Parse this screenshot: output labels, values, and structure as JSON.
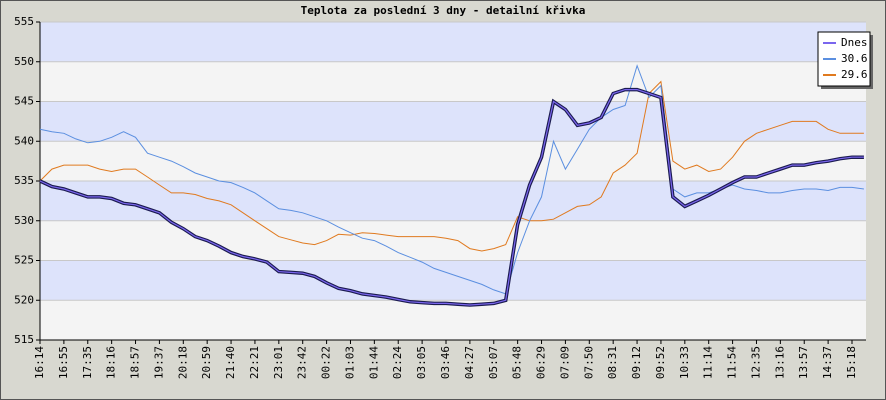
{
  "chart_data": {
    "type": "line",
    "title": "Teplota za poslední 3 dny - detailní křivka",
    "categories": [
      "16:14",
      null,
      "16:55",
      null,
      "17:35",
      null,
      "18:16",
      null,
      "18:57",
      null,
      "19:37",
      null,
      "20:18",
      null,
      "20:59",
      null,
      "21:40",
      null,
      "22:21",
      null,
      "23:01",
      null,
      "23:42",
      null,
      "00:22",
      null,
      "01:03",
      null,
      "01:44",
      null,
      "02:24",
      null,
      "03:05",
      null,
      "03:46",
      null,
      "04:27",
      null,
      "05:07",
      null,
      "05:48",
      null,
      "06:29",
      null,
      "07:09",
      null,
      "07:50",
      null,
      "08:31",
      null,
      "09:12",
      null,
      "09:52",
      null,
      "10:33",
      null,
      "11:14",
      null,
      "11:54",
      null,
      "12:35",
      null,
      "13:16",
      null,
      "13:57",
      null,
      "14:37",
      null,
      "15:18",
      null
    ],
    "ylim": [
      515,
      555
    ],
    "yticks": [
      515,
      520,
      525,
      530,
      535,
      540,
      545,
      550,
      555
    ],
    "legend": "top-right",
    "grid": true,
    "series": [
      {
        "name": "Dnes",
        "color": "#7a66ee",
        "values": [
          535,
          534.3,
          534,
          533.5,
          533,
          533,
          532.8,
          532.2,
          532,
          531.5,
          531,
          529.8,
          529,
          528,
          527.5,
          526.8,
          526,
          525.5,
          525.2,
          524.8,
          523.6,
          523.5,
          523.4,
          523,
          522.2,
          521.5,
          521.2,
          520.8,
          520.6,
          520.4,
          520.1,
          519.8,
          519.7,
          519.6,
          519.6,
          519.5,
          519.4,
          519.5,
          519.6,
          520,
          529.5,
          534.5,
          538,
          545,
          544,
          542,
          542.3,
          543,
          546,
          546.5,
          546.5,
          546,
          545.5,
          533,
          531.8,
          532.5,
          533.2,
          534,
          534.8,
          535.5,
          535.5,
          536,
          536.5,
          537,
          537,
          537.3,
          537.5,
          537.8,
          538,
          538
        ]
      },
      {
        "name": "30.6",
        "color": "#5b8fe0",
        "values": [
          541.5,
          541.2,
          541,
          540.3,
          539.8,
          540,
          540.5,
          541.2,
          540.5,
          538.5,
          538,
          537.5,
          536.8,
          536,
          535.5,
          535,
          534.8,
          534.2,
          533.5,
          532.5,
          531.5,
          531.3,
          531,
          530.5,
          530,
          529.2,
          528.5,
          527.8,
          527.5,
          526.8,
          526,
          525.4,
          524.8,
          524,
          523.5,
          523,
          522.5,
          522,
          521.3,
          520.8,
          526,
          530,
          533,
          540,
          536.5,
          539,
          541.5,
          543,
          544,
          544.5,
          549.5,
          545.5,
          547,
          534,
          533,
          533.5,
          533.5,
          534,
          534.5,
          534,
          533.8,
          533.5,
          533.5,
          533.8,
          534,
          534,
          533.8,
          534.2,
          534.2,
          534
        ]
      },
      {
        "name": "29.6",
        "color": "#e07a1f",
        "values": [
          535,
          536.5,
          537,
          537,
          537,
          536.5,
          536.2,
          536.5,
          536.5,
          535.5,
          534.5,
          533.5,
          533.5,
          533.3,
          532.8,
          532.5,
          532,
          531,
          530,
          529,
          528,
          527.6,
          527.2,
          527,
          527.5,
          528.3,
          528.2,
          528.5,
          528.4,
          528.2,
          528,
          528,
          528,
          528,
          527.8,
          527.5,
          526.5,
          526.2,
          526.5,
          527,
          530.5,
          530,
          530,
          530.2,
          531,
          531.8,
          532,
          533,
          536,
          537,
          538.5,
          546,
          547.5,
          537.5,
          536.5,
          537,
          536.2,
          536.5,
          538,
          540,
          541,
          541.5,
          542,
          542.5,
          542.5,
          542.5,
          541.5,
          541,
          541,
          541
        ]
      }
    ]
  }
}
